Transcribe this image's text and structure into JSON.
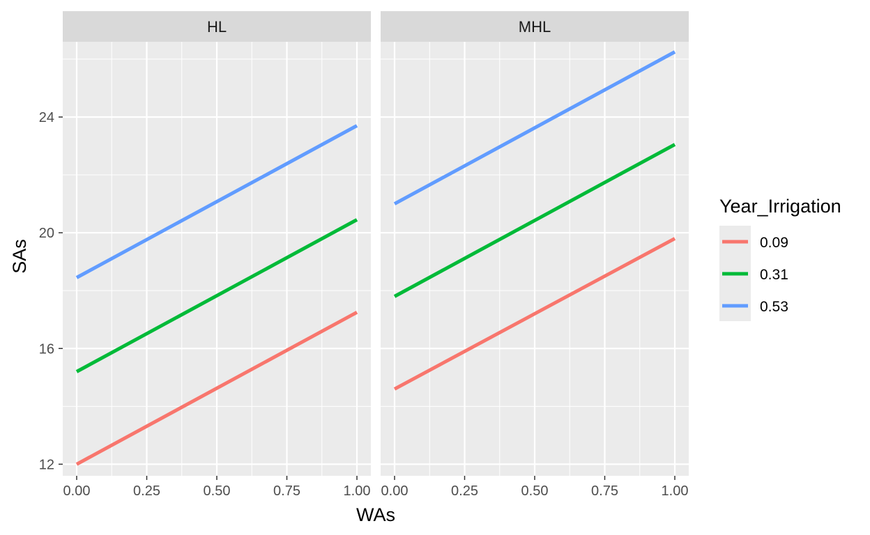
{
  "chart_data": {
    "type": "line",
    "facets": [
      "HL",
      "MHL"
    ],
    "xlabel": "WAs",
    "ylabel": "SAs",
    "xlim": [
      0,
      1
    ],
    "ylim": [
      11.6,
      26.6
    ],
    "x_ticks": [
      0,
      0.25,
      0.5,
      0.75,
      1
    ],
    "x_tick_labels": [
      "0.00",
      "0.25",
      "0.50",
      "0.75",
      "1.00"
    ],
    "y_ticks": [
      12,
      16,
      20,
      24
    ],
    "y_tick_labels": [
      "12",
      "16",
      "20",
      "24"
    ],
    "grid": true,
    "legend": {
      "title": "Year_Irrigation",
      "position": "right",
      "entries": [
        "0.09",
        "0.31",
        "0.53"
      ]
    },
    "series": [
      {
        "name": "0.09",
        "color": "#F8766D",
        "values": {
          "HL": [
            [
              0,
              12.0
            ],
            [
              1,
              17.25
            ]
          ],
          "MHL": [
            [
              0,
              14.6
            ],
            [
              1,
              19.8
            ]
          ]
        }
      },
      {
        "name": "0.31",
        "color": "#00BA38",
        "values": {
          "HL": [
            [
              0,
              15.2
            ],
            [
              1,
              20.45
            ]
          ],
          "MHL": [
            [
              0,
              17.8
            ],
            [
              1,
              23.05
            ]
          ]
        }
      },
      {
        "name": "0.53",
        "color": "#619CFF",
        "values": {
          "HL": [
            [
              0,
              18.45
            ],
            [
              1,
              23.7
            ]
          ],
          "MHL": [
            [
              0,
              21.0
            ],
            [
              1,
              26.25
            ]
          ]
        }
      }
    ]
  }
}
